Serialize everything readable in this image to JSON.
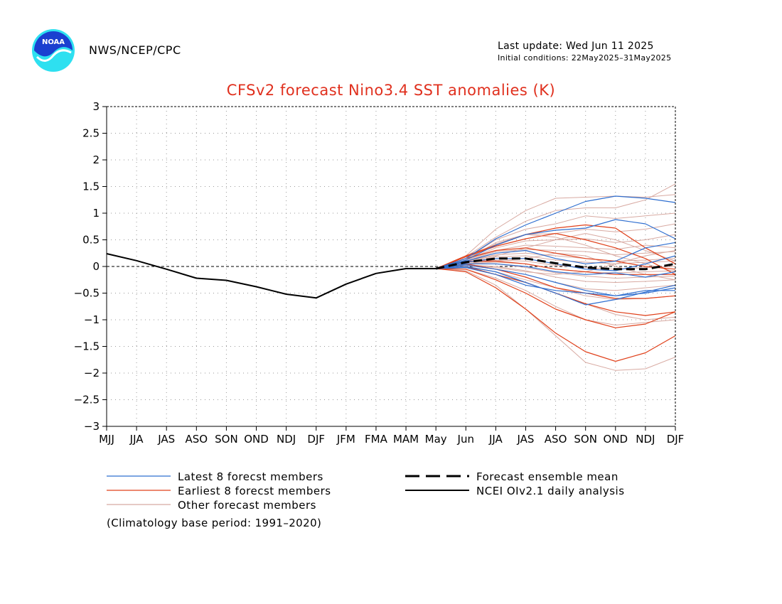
{
  "header": {
    "agency": "NWS/NCEP/CPC",
    "last_update": "Last update: Wed Jun 11 2025",
    "initial_conditions": "Initial conditions: 22May2025–31May2025",
    "logo_text": "NOAA"
  },
  "note": "(Climatology base period: 1991–2020)",
  "chart_data": {
    "type": "line",
    "title": "CFSv2 forecast Nino3.4 SST anomalies (K)",
    "xlabel": "",
    "ylabel": "",
    "categories": [
      "MJJ",
      "JJA",
      "JAS",
      "ASO",
      "SON",
      "OND",
      "NDJ",
      "DJF",
      "JFM",
      "FMA",
      "MAM",
      "May",
      "Jun",
      "JJA",
      "JAS",
      "ASO",
      "SON",
      "OND",
      "NDJ",
      "DJF"
    ],
    "y_ticks": [
      "3",
      "2.5",
      "2",
      "1.5",
      "1",
      "0.5",
      "0",
      "−0.5",
      "−1",
      "−1.5",
      "−2",
      "−2.5",
      "−3"
    ],
    "ylim": [
      -3,
      3
    ],
    "grid": true,
    "colors": {
      "latest": "#2f6fd0",
      "earliest": "#e0401a",
      "other": "#d8aaa2",
      "title": "#e0301e"
    },
    "legend": [
      {
        "label": "Latest 8 forecst members",
        "style": "latest"
      },
      {
        "label": "Earliest 8 forecst members",
        "style": "earliest"
      },
      {
        "label": "Other forecast members",
        "style": "other"
      },
      {
        "label": "Forecast ensemble mean",
        "style": "mean"
      },
      {
        "label": "NCEI OIv2.1 daily analysis",
        "style": "analysis"
      }
    ],
    "analysis": {
      "name": "NCEI OIv2.1 daily analysis",
      "x": [
        0,
        1,
        2,
        3,
        4,
        5,
        6,
        7,
        8,
        9,
        10,
        11
      ],
      "values": [
        0.24,
        0.11,
        -0.05,
        -0.22,
        -0.26,
        -0.38,
        -0.52,
        -0.59,
        -0.33,
        -0.13,
        -0.04,
        -0.04
      ]
    },
    "ensemble_mean": {
      "name": "Forecast ensemble mean",
      "x": [
        11,
        12,
        13,
        14,
        15,
        16,
        17,
        18,
        19
      ],
      "values": [
        -0.04,
        0.08,
        0.15,
        0.15,
        0.06,
        -0.02,
        -0.05,
        -0.05,
        0.05
      ]
    },
    "latest_members": [
      {
        "x": [
          11,
          12,
          13,
          14,
          15,
          16,
          17,
          18,
          19
        ],
        "values": [
          -0.04,
          0.15,
          0.52,
          0.78,
          1.0,
          1.22,
          1.32,
          1.28,
          1.2
        ]
      },
      {
        "x": [
          11,
          12,
          13,
          14,
          15,
          16,
          17,
          18,
          19
        ],
        "values": [
          -0.04,
          0.12,
          0.4,
          0.6,
          0.68,
          0.72,
          0.88,
          0.8,
          0.52
        ]
      },
      {
        "x": [
          11,
          12,
          13,
          14,
          15,
          16,
          17,
          18,
          19
        ],
        "values": [
          -0.04,
          0.1,
          0.25,
          0.3,
          0.15,
          0.05,
          0.1,
          0.35,
          0.45
        ]
      },
      {
        "x": [
          11,
          12,
          13,
          14,
          15,
          16,
          17,
          18,
          19
        ],
        "values": [
          -0.04,
          0.08,
          0.15,
          0.15,
          0.05,
          -0.05,
          -0.08,
          0.05,
          0.2
        ]
      },
      {
        "x": [
          11,
          12,
          13,
          14,
          15,
          16,
          17,
          18,
          19
        ],
        "values": [
          -0.04,
          0.05,
          0.05,
          0.0,
          -0.1,
          -0.15,
          -0.12,
          -0.2,
          -0.1
        ]
      },
      {
        "x": [
          11,
          12,
          13,
          14,
          15,
          16,
          17,
          18,
          19
        ],
        "values": [
          -0.04,
          0.03,
          -0.05,
          -0.15,
          -0.3,
          -0.45,
          -0.55,
          -0.5,
          -0.4
        ]
      },
      {
        "x": [
          11,
          12,
          13,
          14,
          15,
          16,
          17,
          18,
          19
        ],
        "values": [
          -0.04,
          0.0,
          -0.1,
          -0.3,
          -0.5,
          -0.72,
          -0.62,
          -0.48,
          -0.35
        ]
      },
      {
        "x": [
          11,
          12,
          13,
          14,
          15,
          16,
          17,
          18,
          19
        ],
        "values": [
          -0.04,
          -0.02,
          -0.15,
          -0.35,
          -0.45,
          -0.5,
          -0.55,
          -0.45,
          -0.45
        ]
      }
    ],
    "earliest_members": [
      {
        "x": [
          11,
          12,
          13,
          14,
          15,
          16,
          17,
          18,
          19
        ],
        "values": [
          -0.04,
          0.2,
          0.4,
          0.6,
          0.72,
          0.78,
          0.72,
          0.35,
          0.05
        ]
      },
      {
        "x": [
          11,
          12,
          13,
          14,
          15,
          16,
          17,
          18,
          19
        ],
        "values": [
          -0.04,
          0.18,
          0.38,
          0.52,
          0.62,
          0.5,
          0.35,
          0.15,
          -0.15
        ]
      },
      {
        "x": [
          11,
          12,
          13,
          14,
          15,
          16,
          17,
          18,
          19
        ],
        "values": [
          -0.04,
          0.15,
          0.3,
          0.35,
          0.25,
          0.15,
          0.1,
          0.0,
          -0.05
        ]
      },
      {
        "x": [
          11,
          12,
          13,
          14,
          15,
          16,
          17,
          18,
          19
        ],
        "values": [
          -0.04,
          0.1,
          0.1,
          0.05,
          -0.05,
          -0.1,
          -0.15,
          -0.15,
          -0.15
        ]
      },
      {
        "x": [
          11,
          12,
          13,
          14,
          15,
          16,
          17,
          18,
          19
        ],
        "values": [
          -0.04,
          0.05,
          -0.05,
          -0.2,
          -0.4,
          -0.5,
          -0.6,
          -0.6,
          -0.55
        ]
      },
      {
        "x": [
          11,
          12,
          13,
          14,
          15,
          16,
          17,
          18,
          19
        ],
        "values": [
          -0.04,
          0.0,
          -0.15,
          -0.3,
          -0.5,
          -0.7,
          -0.85,
          -0.92,
          -0.85
        ]
      },
      {
        "x": [
          11,
          12,
          13,
          14,
          15,
          16,
          17,
          18,
          19
        ],
        "values": [
          -0.04,
          -0.05,
          -0.25,
          -0.5,
          -0.8,
          -1.0,
          -1.15,
          -1.08,
          -0.85
        ]
      },
      {
        "x": [
          11,
          12,
          13,
          14,
          15,
          16,
          17,
          18,
          19
        ],
        "values": [
          -0.04,
          -0.1,
          -0.4,
          -0.8,
          -1.25,
          -1.6,
          -1.78,
          -1.62,
          -1.3
        ]
      }
    ],
    "other_members": [
      {
        "x": [
          11,
          12,
          13,
          14,
          15,
          16,
          17,
          18,
          19
        ],
        "values": [
          -0.04,
          0.2,
          0.7,
          1.05,
          1.28,
          1.3,
          1.32,
          1.3,
          1.35
        ]
      },
      {
        "x": [
          11,
          12,
          13,
          14,
          15,
          16,
          17,
          18,
          19
        ],
        "values": [
          -0.04,
          0.18,
          0.55,
          0.85,
          1.05,
          1.1,
          1.1,
          1.25,
          1.55
        ]
      },
      {
        "x": [
          11,
          12,
          13,
          14,
          15,
          16,
          17,
          18,
          19
        ],
        "values": [
          -0.04,
          0.15,
          0.5,
          0.7,
          0.8,
          0.95,
          0.9,
          0.95,
          1.0
        ]
      },
      {
        "x": [
          11,
          12,
          13,
          14,
          15,
          16,
          17,
          18,
          19
        ],
        "values": [
          -0.04,
          0.15,
          0.42,
          0.6,
          0.62,
          0.7,
          0.65,
          0.7,
          0.8
        ]
      },
      {
        "x": [
          11,
          12,
          13,
          14,
          15,
          16,
          17,
          18,
          19
        ],
        "values": [
          -0.04,
          0.12,
          0.35,
          0.48,
          0.5,
          0.52,
          0.45,
          0.5,
          0.6
        ]
      },
      {
        "x": [
          11,
          12,
          13,
          14,
          15,
          16,
          17,
          18,
          19
        ],
        "values": [
          -0.04,
          0.12,
          0.3,
          0.4,
          0.38,
          0.35,
          0.32,
          0.4,
          0.35
        ]
      },
      {
        "x": [
          11,
          12,
          13,
          14,
          15,
          16,
          17,
          18,
          19
        ],
        "values": [
          -0.04,
          0.1,
          0.28,
          0.32,
          0.3,
          0.28,
          0.22,
          0.25,
          0.28
        ]
      },
      {
        "x": [
          11,
          12,
          13,
          14,
          15,
          16,
          17,
          18,
          19
        ],
        "values": [
          -0.04,
          0.1,
          0.22,
          0.25,
          0.2,
          0.15,
          0.1,
          0.12,
          0.15
        ]
      },
      {
        "x": [
          11,
          12,
          13,
          14,
          15,
          16,
          17,
          18,
          19
        ],
        "values": [
          -0.04,
          0.08,
          0.18,
          0.2,
          0.12,
          0.08,
          0.05,
          0.08,
          0.1
        ]
      },
      {
        "x": [
          11,
          12,
          13,
          14,
          15,
          16,
          17,
          18,
          19
        ],
        "values": [
          -0.04,
          0.08,
          0.12,
          0.1,
          0.02,
          -0.02,
          -0.05,
          -0.02,
          0.0
        ]
      },
      {
        "x": [
          11,
          12,
          13,
          14,
          15,
          16,
          17,
          18,
          19
        ],
        "values": [
          -0.04,
          0.05,
          0.08,
          0.05,
          -0.05,
          -0.1,
          -0.12,
          -0.1,
          -0.08
        ]
      },
      {
        "x": [
          11,
          12,
          13,
          14,
          15,
          16,
          17,
          18,
          19
        ],
        "values": [
          -0.04,
          0.05,
          0.05,
          -0.02,
          -0.12,
          -0.18,
          -0.22,
          -0.2,
          -0.18
        ]
      },
      {
        "x": [
          11,
          12,
          13,
          14,
          15,
          16,
          17,
          18,
          19
        ],
        "values": [
          -0.04,
          0.03,
          0.0,
          -0.08,
          -0.2,
          -0.28,
          -0.3,
          -0.28,
          -0.25
        ]
      },
      {
        "x": [
          11,
          12,
          13,
          14,
          15,
          16,
          17,
          18,
          19
        ],
        "values": [
          -0.04,
          0.02,
          -0.05,
          -0.15,
          -0.3,
          -0.42,
          -0.45,
          -0.4,
          -0.35
        ]
      },
      {
        "x": [
          11,
          12,
          13,
          14,
          15,
          16,
          17,
          18,
          19
        ],
        "values": [
          -0.04,
          0.0,
          -0.1,
          -0.25,
          -0.4,
          -0.55,
          -0.62,
          -0.6,
          -0.55
        ]
      },
      {
        "x": [
          11,
          12,
          13,
          14,
          15,
          16,
          17,
          18,
          19
        ],
        "values": [
          -0.04,
          -0.02,
          -0.15,
          -0.3,
          -0.5,
          -0.7,
          -0.9,
          -1.0,
          -0.95
        ]
      },
      {
        "x": [
          11,
          12,
          13,
          14,
          15,
          16,
          17,
          18,
          19
        ],
        "values": [
          -0.04,
          -0.05,
          -0.22,
          -0.45,
          -0.75,
          -1.0,
          -1.1,
          -1.05,
          -1.0
        ]
      },
      {
        "x": [
          11,
          12,
          13,
          14,
          15,
          16,
          17,
          18,
          19
        ],
        "values": [
          -0.04,
          -0.08,
          -0.35,
          -0.8,
          -1.3,
          -1.8,
          -1.95,
          -1.92,
          -1.7
        ]
      },
      {
        "x": [
          11,
          12,
          13,
          14,
          15,
          16,
          17,
          18,
          19
        ],
        "values": [
          -0.04,
          0.12,
          0.45,
          0.6,
          0.55,
          0.4,
          0.2,
          0.05,
          -0.1
        ]
      },
      {
        "x": [
          11,
          12,
          13,
          14,
          15,
          16,
          17,
          18,
          19
        ],
        "values": [
          -0.04,
          0.1,
          0.2,
          0.35,
          0.5,
          0.62,
          0.5,
          0.3,
          0.1
        ]
      },
      {
        "x": [
          11,
          12,
          13,
          14,
          15,
          16,
          17,
          18,
          19
        ],
        "values": [
          -0.04,
          0.06,
          0.1,
          0.15,
          0.25,
          0.2,
          0.0,
          -0.15,
          -0.25
        ]
      },
      {
        "x": [
          11,
          12,
          13,
          14,
          15,
          16,
          17,
          18,
          19
        ],
        "values": [
          -0.04,
          0.04,
          -0.02,
          -0.1,
          -0.15,
          -0.1,
          0.05,
          0.2,
          0.3
        ]
      }
    ]
  }
}
